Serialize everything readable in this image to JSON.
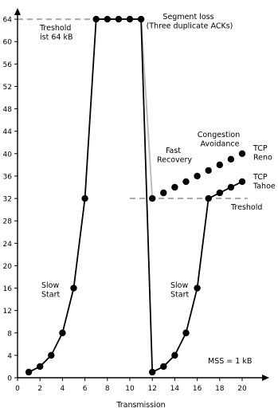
{
  "chart_data": {
    "type": "line",
    "title": "",
    "xlabel": "Transmission",
    "ylabel": "",
    "xlim": [
      0,
      21
    ],
    "ylim": [
      0,
      66
    ],
    "x_ticks": [
      0,
      2,
      4,
      6,
      8,
      10,
      12,
      14,
      16,
      18,
      20
    ],
    "y_ticks": [
      0,
      4,
      8,
      12,
      16,
      20,
      24,
      28,
      32,
      36,
      40,
      44,
      48,
      52,
      56,
      60,
      64
    ],
    "grid": false,
    "series": [
      {
        "name": "",
        "x": [
          1,
          2,
          3,
          4,
          5,
          6,
          7,
          8,
          9,
          10,
          11,
          12,
          13,
          14,
          15,
          16,
          17,
          18,
          19,
          20
        ],
        "y": [
          1,
          2,
          4,
          8,
          16,
          32,
          64,
          64,
          64,
          64,
          64,
          1,
          2,
          4,
          8,
          16,
          32,
          33,
          34,
          35
        ],
        "color": "#000000"
      },
      {
        "name": "",
        "x": [
          12,
          13,
          14,
          15,
          16,
          17,
          18,
          19,
          20
        ],
        "y": [
          32,
          33,
          34,
          35,
          36,
          37,
          38,
          39,
          40
        ],
        "color": "#000000",
        "line": false
      }
    ],
    "reference_lines": [
      {
        "type": "threshold",
        "x_from": 0,
        "x_to": 7,
        "y": 64,
        "color": "#aaaaaa",
        "dashed": true
      },
      {
        "type": "threshold",
        "x_from": 10,
        "x_to": 20.5,
        "y": 32,
        "color": "#aaaaaa",
        "dashed": true
      },
      {
        "type": "fast-recovery",
        "x": [
          11,
          12
        ],
        "y": [
          64,
          32
        ],
        "color": "#bbbbbb",
        "dashed": false
      }
    ],
    "annotations": [
      {
        "id": "treshold_64",
        "lines": [
          "Treshold",
          "ist 64 kB"
        ]
      },
      {
        "id": "segment_loss",
        "lines": [
          "Segment loss",
          "(Three duplicate ACKs)"
        ]
      },
      {
        "id": "fast_recovery",
        "lines": [
          "Fast",
          "Recovery"
        ]
      },
      {
        "id": "congestion_avoidance",
        "lines": [
          "Congestion",
          "Avoidance"
        ]
      },
      {
        "id": "tcp_reno",
        "lines": [
          "TCP",
          "Reno"
        ]
      },
      {
        "id": "tcp_tahoe",
        "lines": [
          "TCP",
          "Tahoe"
        ]
      },
      {
        "id": "treshold_32",
        "lines": [
          "Treshold"
        ]
      },
      {
        "id": "slow_start_1",
        "lines": [
          "Slow",
          "Start"
        ]
      },
      {
        "id": "slow_start_2",
        "lines": [
          "Slow",
          "Start"
        ]
      },
      {
        "id": "mss",
        "lines": [
          "MSS = 1 kB"
        ]
      }
    ]
  }
}
